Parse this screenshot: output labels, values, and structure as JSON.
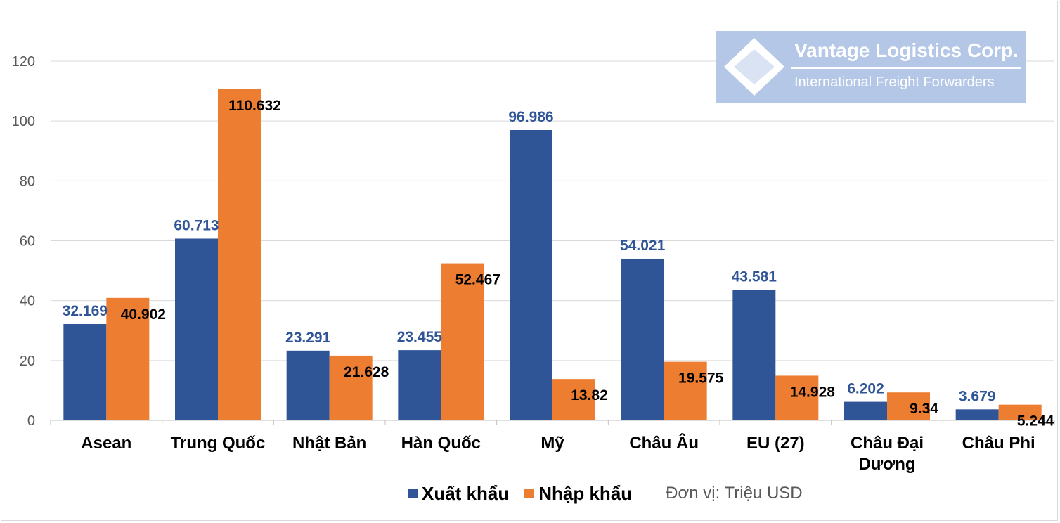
{
  "chart_data": {
    "type": "bar",
    "title": "",
    "xlabel": "",
    "ylabel": "",
    "ylim": [
      0,
      120
    ],
    "yticks": [
      0,
      20,
      40,
      60,
      80,
      100,
      120
    ],
    "grid": true,
    "legend_position": "bottom",
    "categories": [
      "Asean",
      "Trung Quốc",
      "Nhật Bản",
      "Hàn Quốc",
      "Mỹ",
      "Châu Âu",
      "EU (27)",
      "Châu Đại Dương",
      "Châu Phi"
    ],
    "series": [
      {
        "name": "Xuất khẩu",
        "color": "#2f5597",
        "values": [
          32.169,
          60.713,
          23.291,
          23.455,
          96.986,
          54.021,
          43.581,
          6.202,
          3.679
        ],
        "labels": [
          "32.169",
          "60.713",
          "23.291",
          "23.455",
          "96.986",
          "54.021",
          "43.581",
          "6.202",
          "3.679"
        ]
      },
      {
        "name": "Nhập khẩu",
        "color": "#ed7d31",
        "values": [
          40.902,
          110.632,
          21.628,
          52.467,
          13.82,
          19.575,
          14.928,
          9.34,
          5.244
        ],
        "labels": [
          "40.902",
          "110.632",
          "21.628",
          "52.467",
          "13.82",
          "19.575",
          "14.928",
          "9.34",
          "5.244"
        ]
      }
    ],
    "unit_note": "Đơn vị: Triệu USD"
  },
  "logo": {
    "name": "Vantage Logistics Corp.",
    "tagline": "International Freight Forwarders",
    "color": "#b4c7e7"
  }
}
